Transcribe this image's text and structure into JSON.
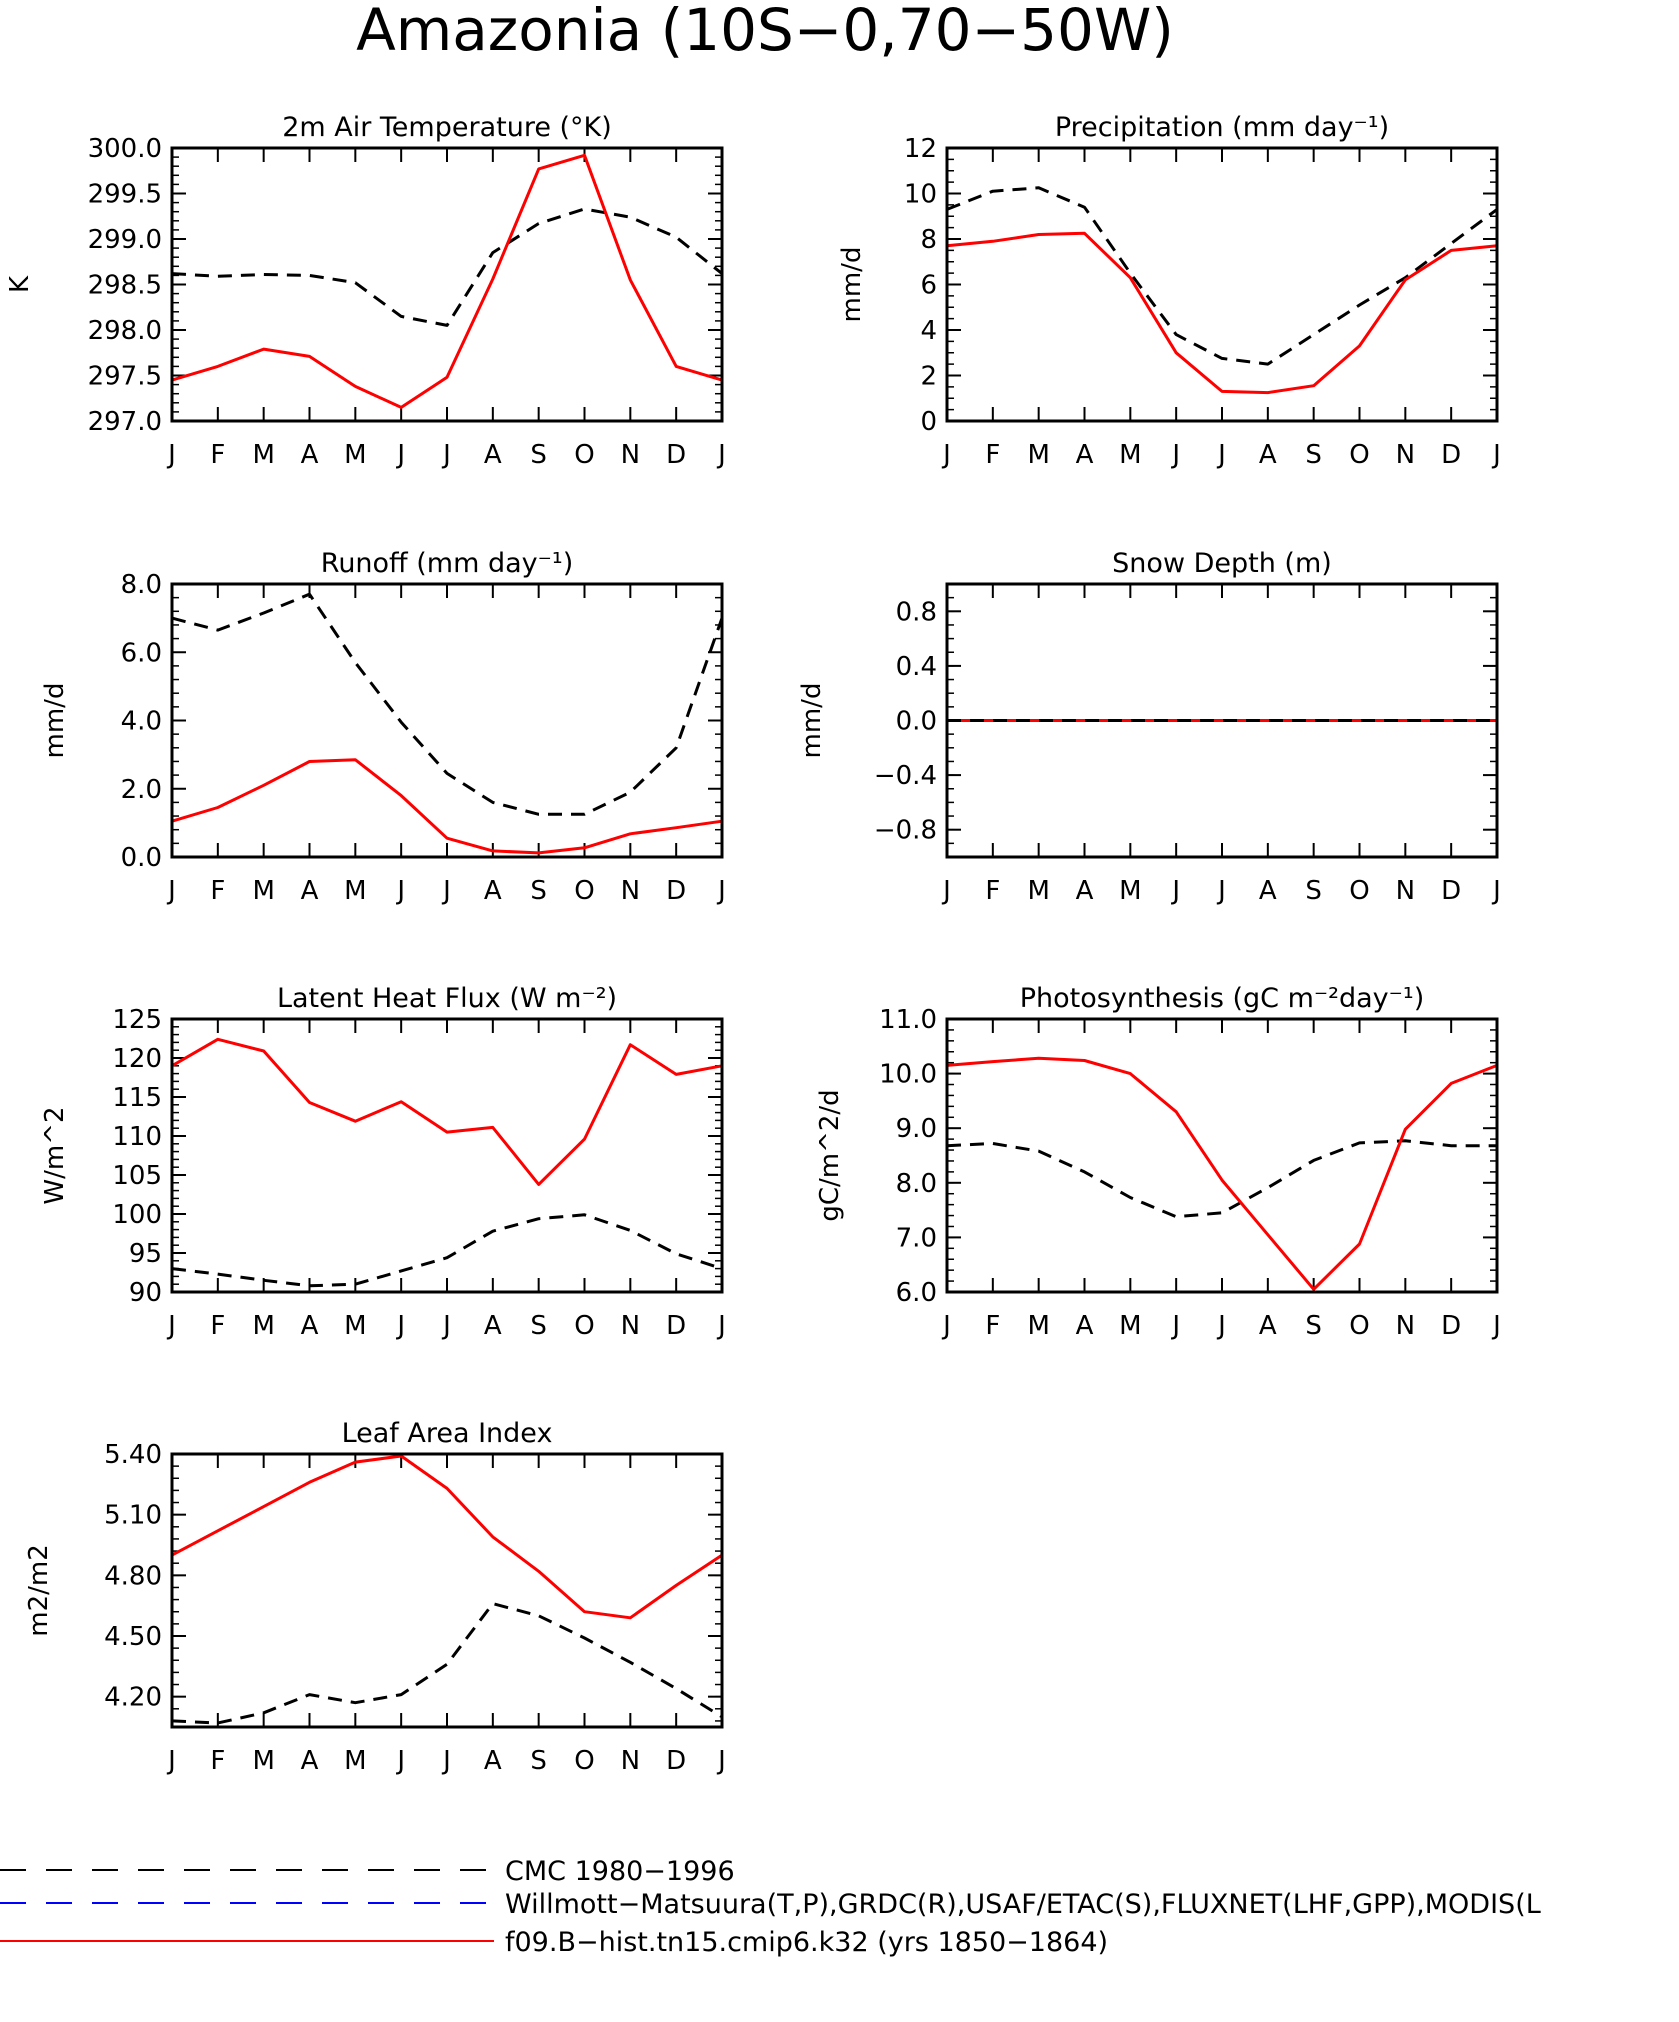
{
  "figure": {
    "title": "Amazonia (10S−0,70−50W)"
  },
  "months": [
    "J",
    "F",
    "M",
    "A",
    "M",
    "J",
    "J",
    "A",
    "S",
    "O",
    "N",
    "D",
    "J"
  ],
  "colors": {
    "obs": "#000000",
    "model": "#ff0000",
    "ref": "#0000ff"
  },
  "legend": [
    {
      "label": "CMC 1980−1996",
      "color": "#000000",
      "style": "dashed"
    },
    {
      "label": "Willmott−Matsuura(T,P),GRDC(R),USAF/ETAC(S),FLUXNET(LHF,GPP),MODIS(L",
      "color": "#0000ff",
      "style": "dashed"
    },
    {
      "label": "f09.B−hist.tn15.cmip6.k32 (yrs 1850−1864)",
      "color": "#ff0000",
      "style": "solid"
    }
  ],
  "chart_data": [
    {
      "type": "line",
      "title": "2m Air Temperature (°K)",
      "ylabel": "K",
      "ylim": [
        297.0,
        300.0
      ],
      "yticks": [
        297.0,
        297.5,
        298.0,
        298.5,
        299.0,
        299.5,
        300.0
      ],
      "ytick_labels": [
        "297.0",
        "297.5",
        "298.0",
        "298.5",
        "299.0",
        "299.5",
        "300.0"
      ],
      "yminor": 0.1,
      "series": [
        {
          "role": "obs",
          "values": [
            298.62,
            298.59,
            298.61,
            298.6,
            298.52,
            298.15,
            298.05,
            298.85,
            299.17,
            299.33,
            299.24,
            299.02,
            298.62
          ]
        },
        {
          "role": "model",
          "values": [
            297.45,
            297.6,
            297.79,
            297.71,
            297.38,
            297.15,
            297.48,
            298.56,
            299.77,
            299.92,
            298.55,
            297.6,
            297.45
          ]
        }
      ]
    },
    {
      "type": "line",
      "title": "Precipitation (mm day⁻¹)",
      "ylabel": "mm/d",
      "ylim": [
        0,
        12
      ],
      "yticks": [
        0,
        2,
        4,
        6,
        8,
        10,
        12
      ],
      "ytick_labels": [
        "0",
        "2",
        "4",
        "6",
        "8",
        "10",
        "12"
      ],
      "yminor": 0.5,
      "series": [
        {
          "role": "obs",
          "values": [
            9.3,
            10.1,
            10.25,
            9.4,
            6.5,
            3.8,
            2.75,
            2.5,
            3.8,
            5.1,
            6.3,
            7.8,
            9.3
          ]
        },
        {
          "role": "model",
          "values": [
            7.7,
            7.9,
            8.2,
            8.25,
            6.3,
            3.0,
            1.3,
            1.25,
            1.55,
            3.3,
            6.2,
            7.5,
            7.7
          ]
        }
      ]
    },
    {
      "type": "line",
      "title": "Runoff (mm day⁻¹)",
      "ylabel": "mm/d",
      "ylim": [
        0,
        8
      ],
      "yticks": [
        0,
        2,
        4,
        6,
        8
      ],
      "ytick_labels": [
        "0.0",
        "2.0",
        "4.0",
        "6.0",
        "8.0"
      ],
      "yminor": 0.4,
      "series": [
        {
          "role": "obs",
          "values": [
            7.0,
            6.65,
            7.15,
            7.7,
            5.7,
            3.95,
            2.45,
            1.6,
            1.25,
            1.25,
            1.9,
            3.2,
            7.0
          ]
        },
        {
          "role": "model",
          "values": [
            1.05,
            1.45,
            2.1,
            2.8,
            2.85,
            1.8,
            0.55,
            0.18,
            0.12,
            0.27,
            0.68,
            0.86,
            1.05
          ]
        }
      ]
    },
    {
      "type": "line",
      "title": "Snow Depth (m)",
      "ylabel": "mm/d",
      "ylim": [
        -1.0,
        1.0
      ],
      "yticks": [
        -0.8,
        -0.4,
        0.0,
        0.4,
        0.8
      ],
      "ytick_labels": [
        "−0.8",
        "−0.4",
        "0.0",
        "0.4",
        "0.8"
      ],
      "yminor": 0.1,
      "zero_line": true,
      "series": [
        {
          "role": "model",
          "values": [
            0,
            0,
            0,
            0,
            0,
            0,
            0,
            0,
            0,
            0,
            0,
            0,
            0
          ]
        },
        {
          "role": "obs",
          "values": [
            0,
            0,
            0,
            0,
            0,
            0,
            0,
            0,
            0,
            0,
            0,
            0,
            0
          ]
        }
      ]
    },
    {
      "type": "line",
      "title": "Latent Heat Flux (W m⁻²)",
      "ylabel": "W/m^2",
      "ylim": [
        90,
        125
      ],
      "yticks": [
        90,
        95,
        100,
        105,
        110,
        115,
        120,
        125
      ],
      "ytick_labels": [
        "90",
        "95",
        "100",
        "105",
        "110",
        "115",
        "120",
        "125"
      ],
      "yminor": 1,
      "series": [
        {
          "role": "obs",
          "values": [
            93.0,
            92.3,
            91.5,
            90.8,
            91.0,
            92.7,
            94.4,
            97.8,
            99.4,
            99.9,
            97.9,
            94.9,
            93.0
          ]
        },
        {
          "role": "model",
          "values": [
            119.0,
            122.4,
            120.9,
            114.3,
            111.9,
            114.4,
            110.5,
            111.1,
            103.8,
            109.6,
            121.7,
            117.9,
            119.0
          ]
        }
      ]
    },
    {
      "type": "line",
      "title": "Photosynthesis (gC m⁻²day⁻¹)",
      "ylabel": "gC/m^2/d",
      "ylim": [
        6.0,
        11.0
      ],
      "yticks": [
        6.0,
        7.0,
        8.0,
        9.0,
        10.0,
        11.0
      ],
      "ytick_labels": [
        "6.0",
        "7.0",
        "8.0",
        "9.0",
        "10.0",
        "11.0"
      ],
      "yminor": 0.2,
      "series": [
        {
          "role": "obs",
          "values": [
            8.68,
            8.72,
            8.58,
            8.2,
            7.73,
            7.38,
            7.45,
            7.91,
            8.41,
            8.73,
            8.77,
            8.68,
            8.68
          ]
        },
        {
          "role": "model",
          "values": [
            10.15,
            10.22,
            10.28,
            10.24,
            10.0,
            9.3,
            8.05,
            7.05,
            6.05,
            6.88,
            8.98,
            9.82,
            10.15
          ]
        }
      ]
    },
    {
      "type": "line",
      "title": "Leaf Area Index",
      "ylabel": "m2/m2",
      "ylim": [
        4.05,
        5.4
      ],
      "yticks": [
        4.2,
        4.5,
        4.8,
        5.1,
        5.4
      ],
      "ytick_labels": [
        "4.20",
        "4.50",
        "4.80",
        "5.10",
        "5.40"
      ],
      "yminor": 0.06,
      "series": [
        {
          "role": "obs",
          "values": [
            4.08,
            4.07,
            4.12,
            4.21,
            4.17,
            4.21,
            4.36,
            4.66,
            4.6,
            4.49,
            4.37,
            4.24,
            4.1
          ]
        },
        {
          "role": "model",
          "values": [
            4.9,
            5.02,
            5.14,
            5.26,
            5.36,
            5.39,
            5.23,
            4.99,
            4.82,
            4.62,
            4.59,
            4.75,
            4.9
          ]
        }
      ]
    }
  ]
}
